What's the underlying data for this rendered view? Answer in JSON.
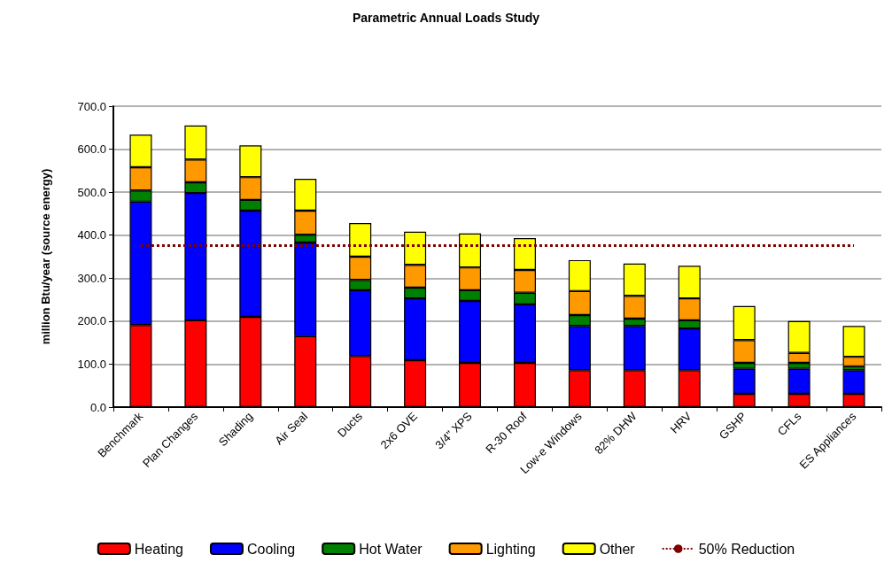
{
  "chart_data": {
    "type": "bar",
    "title": "Parametric Annual Loads Study",
    "ylabel": "million Btu/year (source energy)",
    "categories": [
      "Benchmark",
      "Plan Changes",
      "Shading",
      "Air Seal",
      "Ducts",
      "2x6 OVE",
      "3/4\" XPS",
      "R-30 Roof",
      "Low-e Windows",
      "82% DHW",
      "HRV",
      "GSHP",
      "CFLs",
      "ES Appliances"
    ],
    "stacked": true,
    "series": [
      {
        "name": "Heating",
        "color": "#ff0000",
        "values": [
          191,
          202,
          210,
          165,
          119,
          109,
          103,
          103,
          86,
          86,
          86,
          31,
          31,
          31
        ]
      },
      {
        "name": "Cooling",
        "color": "#0000ff",
        "values": [
          287,
          296,
          247,
          218,
          153,
          144,
          144,
          136,
          103,
          103,
          97,
          58,
          58,
          55
        ]
      },
      {
        "name": "Hot Water",
        "color": "#008000",
        "values": [
          26,
          25,
          25,
          18,
          24,
          25,
          25,
          27,
          25,
          17,
          19,
          14,
          14,
          9
        ]
      },
      {
        "name": "Lighting",
        "color": "#ff9900",
        "values": [
          54,
          53,
          53,
          56,
          54,
          53,
          53,
          53,
          56,
          53,
          51,
          53,
          23,
          22
        ]
      },
      {
        "name": "Other",
        "color": "#ffff00",
        "values": [
          76,
          79,
          74,
          74,
          78,
          77,
          79,
          74,
          72,
          75,
          76,
          79,
          74,
          72
        ]
      }
    ],
    "ylim": [
      0,
      700
    ],
    "yticks": [
      {
        "value": 0,
        "label": "0.0"
      },
      {
        "value": 100,
        "label": "100.0"
      },
      {
        "value": 200,
        "label": "200.0"
      },
      {
        "value": 300,
        "label": "300.0"
      },
      {
        "value": 400,
        "label": "400.0"
      },
      {
        "value": 500,
        "label": "500.0"
      },
      {
        "value": 600,
        "label": "600.0"
      },
      {
        "value": 700,
        "label": "700.0"
      }
    ],
    "ref_lines": [
      {
        "axis": "y",
        "value": 377,
        "label": "50% Reduction",
        "color": "#800000",
        "line_style": "dotted"
      }
    ],
    "grid": "y",
    "legend": "bottom"
  }
}
